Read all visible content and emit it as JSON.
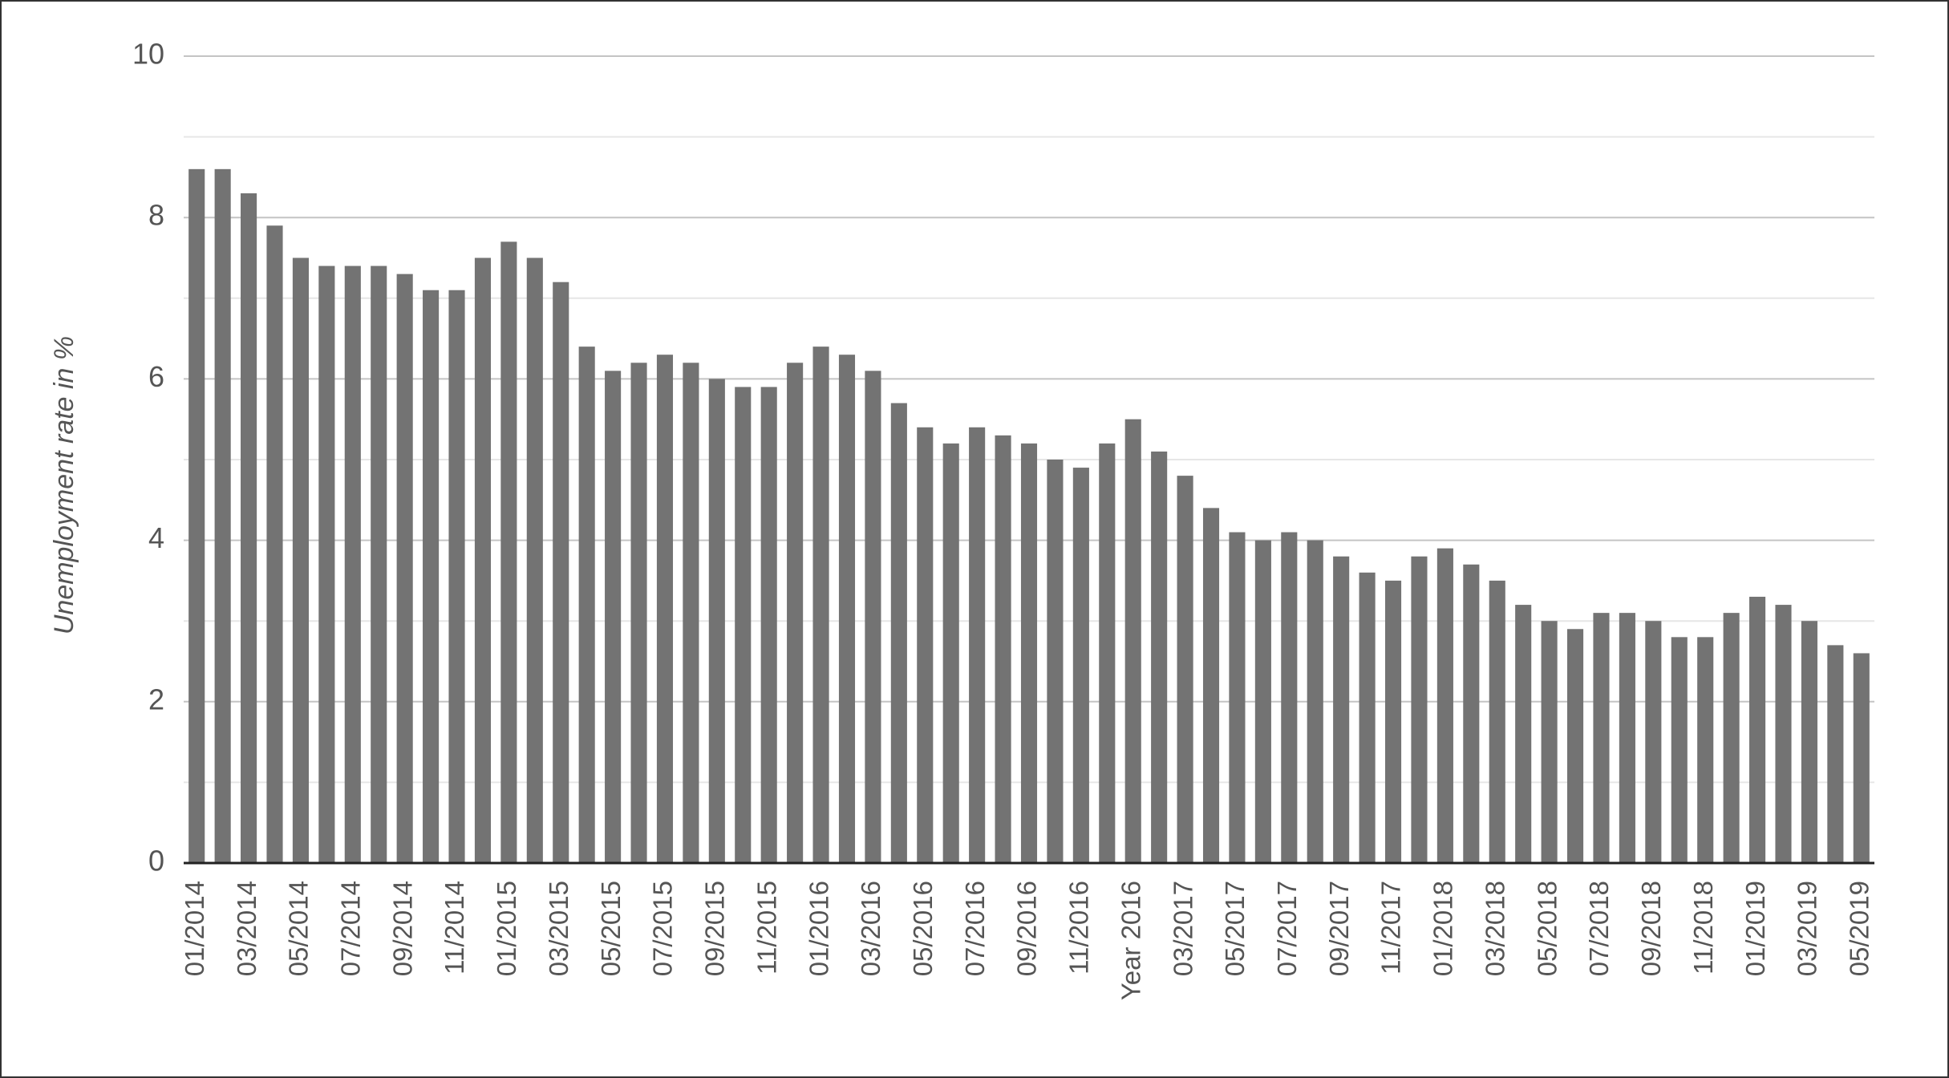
{
  "chart_data": {
    "type": "bar",
    "y_label": "Unemployment rate in %",
    "categories": [
      "01/2014",
      null,
      "03/2014",
      null,
      "05/2014",
      null,
      "07/2014",
      null,
      "09/2014",
      null,
      "11/2014",
      null,
      "01/2015",
      null,
      "03/2015",
      null,
      "05/2015",
      null,
      "07/2015",
      null,
      "09/2015",
      null,
      "11/2015",
      null,
      "01/2016",
      null,
      "03/2016",
      null,
      "05/2016",
      null,
      "07/2016",
      null,
      "09/2016",
      null,
      "11/2016",
      null,
      "Year 2016",
      null,
      "03/2017",
      null,
      "05/2017",
      null,
      "07/2017",
      null,
      "09/2017",
      null,
      "11/2017",
      null,
      "01/2018",
      null,
      "03/2018",
      null,
      "05/2018",
      null,
      "07/2018",
      null,
      "09/2018",
      null,
      "11/2018",
      null,
      "01/2019",
      null,
      "03/2019",
      null,
      "05/2019"
    ],
    "values": [
      8.6,
      8.6,
      8.3,
      7.9,
      7.5,
      7.4,
      7.4,
      7.4,
      7.3,
      7.1,
      7.1,
      7.5,
      7.7,
      7.5,
      7.2,
      6.4,
      6.1,
      6.2,
      6.3,
      6.2,
      6.0,
      5.9,
      5.9,
      6.2,
      6.4,
      6.3,
      6.1,
      5.7,
      5.4,
      5.2,
      5.4,
      5.3,
      5.2,
      5.0,
      4.9,
      5.2,
      5.5,
      5.1,
      4.8,
      4.4,
      4.1,
      4.0,
      4.1,
      4.0,
      3.8,
      3.6,
      3.5,
      3.8,
      3.9,
      3.7,
      3.5,
      3.2,
      3.0,
      2.9,
      3.1,
      3.1,
      3.0,
      2.8,
      2.8,
      3.1,
      3.3,
      3.2,
      3.0,
      2.7,
      2.6
    ],
    "color": "#737373",
    "ylim": [
      0,
      10
    ],
    "yticks": [
      0,
      2,
      4,
      6,
      8,
      10
    ],
    "grid": true,
    "minor_grid": true
  }
}
